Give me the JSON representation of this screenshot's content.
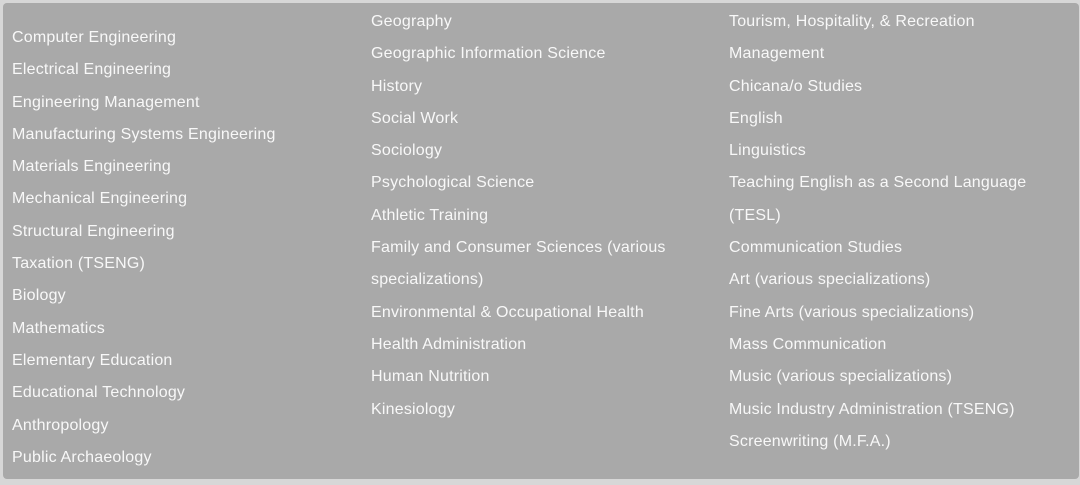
{
  "colors": {
    "page_background": "#d7d7d7",
    "panel_background": "#a9a9a9",
    "text": "#f8f8f8"
  },
  "columns": [
    {
      "items": [
        "Computer Engineering",
        "Electrical Engineering",
        "Engineering Management",
        "Manufacturing Systems Engineering",
        "Materials Engineering",
        "Mechanical Engineering",
        "Structural Engineering",
        "Taxation (TSENG)",
        "Biology",
        "Mathematics",
        "Elementary Education",
        "Educational Technology",
        "Anthropology",
        "Public Archaeology"
      ]
    },
    {
      "items": [
        "Geography",
        "Geographic Information Science",
        "History",
        "Social Work",
        "Sociology",
        "Psychological Science",
        "Athletic Training",
        "Family and Consumer Sciences (various specializations)",
        "Environmental & Occupational Health",
        "Health Administration",
        "Human Nutrition",
        "Kinesiology"
      ]
    },
    {
      "items": [
        "Tourism, Hospitality, & Recreation Management",
        "Chicana/o Studies",
        "English",
        "Linguistics",
        "Teaching English as a Second Language (TESL)",
        "Communication Studies",
        "Art (various specializations)",
        "Fine Arts (various specializations)",
        "Mass Communication",
        "Music (various specializations)",
        "Music Industry Administration (TSENG)",
        "Screenwriting (M.F.A.)"
      ]
    }
  ]
}
